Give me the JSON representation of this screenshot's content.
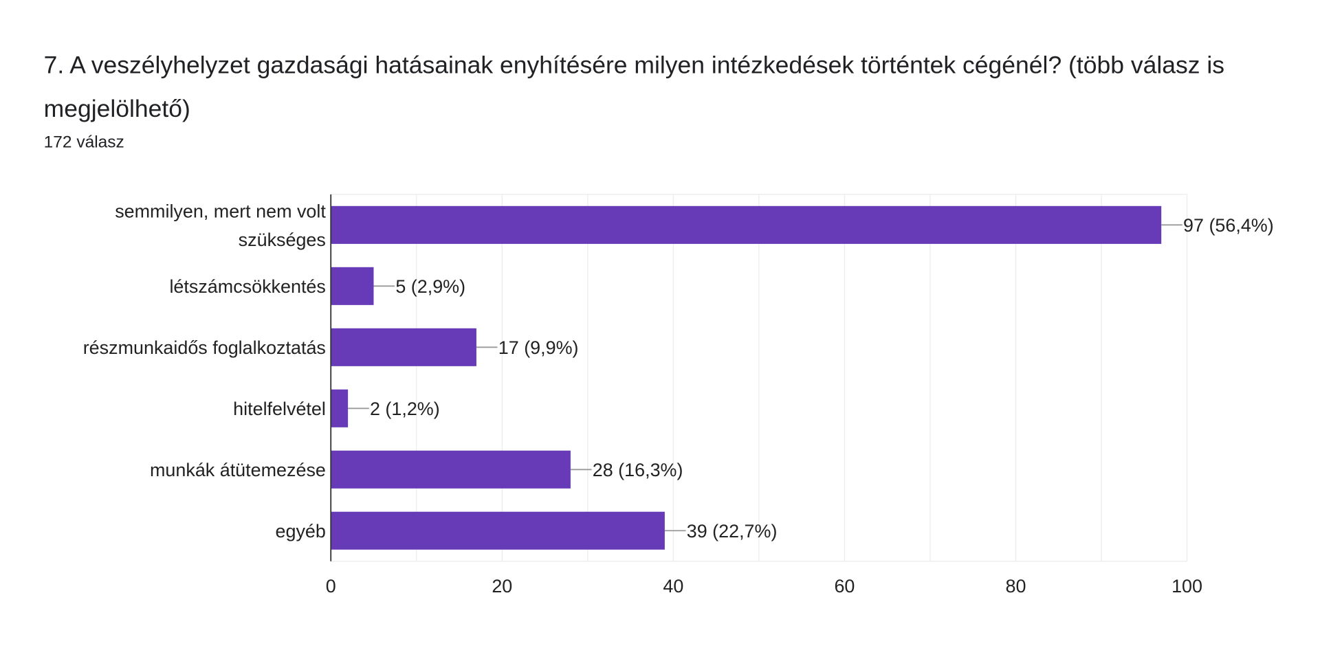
{
  "header": {
    "title": "7. A veszélyhelyzet gazdasági hatásainak enyhítésére milyen intézkedések történtek cégénél? (több válasz is megjelölhető)",
    "response_count": "172 válasz"
  },
  "chart_data": {
    "type": "bar",
    "orientation": "horizontal",
    "title": "7. A veszélyhelyzet gazdasági hatásainak enyhítésére milyen intézkedések történtek cégénél? (több válasz is megjelölhető)",
    "categories": [
      [
        "semmilyen, mert nem volt",
        "szükséges"
      ],
      [
        "létszámcsökkentés"
      ],
      [
        "részmunkaidős foglalkoztatás"
      ],
      [
        "hitelfelvétel"
      ],
      [
        "munkák átütemezése"
      ],
      [
        "egyéb"
      ]
    ],
    "values": [
      97,
      5,
      17,
      2,
      28,
      39
    ],
    "data_labels": [
      "97 (56,4%)",
      "5 (2,9%)",
      "17 (9,9%)",
      "2 (1,2%)",
      "28 (16,3%)",
      "39 (22,7%)"
    ],
    "xlim": [
      0,
      100
    ],
    "x_ticks": [
      0,
      20,
      40,
      60,
      80,
      100
    ],
    "x_tick_labels": [
      "0",
      "20",
      "40",
      "60",
      "80",
      "100"
    ],
    "grid": true,
    "xlabel": "",
    "ylabel": "",
    "colors": {
      "bar": "#673ab7",
      "grid": "#ebebeb",
      "axis": "#333333",
      "leader": "#999999"
    }
  }
}
